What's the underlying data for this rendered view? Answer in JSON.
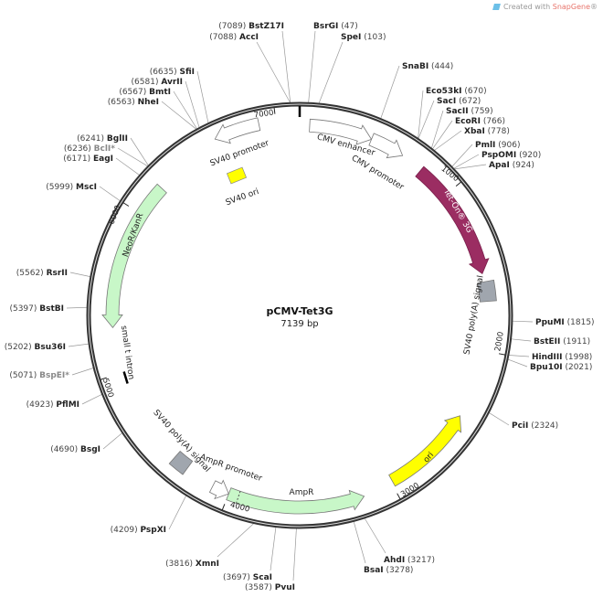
{
  "watermark": {
    "prefix": "Created with ",
    "brand": "SnapGene",
    "suffix": "®",
    "icon": "snapgene-logo-icon"
  },
  "plasmid": {
    "name": "pCMV-Tet3G",
    "size_label": "7139 bp",
    "length_bp": 7139
  },
  "ticks": [
    "1000",
    "2000",
    "3000",
    "4000",
    "5000",
    "6000",
    "7000"
  ],
  "colors": {
    "tet_on": "#9b2d62",
    "neo": "#c8f7c8",
    "amp": "#c8f7c8",
    "ori": "#ffff00",
    "polyA": "#a0a6ae",
    "outline": "#ffffff"
  },
  "features": [
    {
      "name": "CMV enhancer",
      "start": 60,
      "end": 440,
      "style": "outline",
      "direction": "cw"
    },
    {
      "name": "CMV promoter",
      "start": 440,
      "end": 650,
      "style": "outline",
      "direction": "cw"
    },
    {
      "name": "Tet-On® 3G",
      "start": 790,
      "end": 1530,
      "style": "tet_on",
      "direction": "cw"
    },
    {
      "name": "SV40 poly(A) signal",
      "start": 1580,
      "end": 1700,
      "style": "polyA",
      "direction": "none"
    },
    {
      "name": "ori",
      "start": 2420,
      "end": 2990,
      "style": "ori",
      "direction": "ccw"
    },
    {
      "name": "AmpR",
      "start": 3180,
      "end": 4000,
      "style": "amp",
      "direction": "ccw"
    },
    {
      "name": "AmpR promoter",
      "start": 4000,
      "end": 4105,
      "style": "outline",
      "direction": "ccw"
    },
    {
      "name": "SV40 poly(A) signal",
      "start": 4290,
      "end": 4390,
      "style": "polyA",
      "direction": "none"
    },
    {
      "name": "small t intron",
      "start": 4950,
      "end": 4985,
      "style": "intron",
      "direction": "none"
    },
    {
      "name": "NeoR/KanR",
      "start": 5280,
      "end": 6200,
      "style": "neo",
      "direction": "ccw"
    },
    {
      "name": "SV40 ori",
      "start": 6610,
      "end": 6700,
      "style": "ori",
      "direction": "none"
    },
    {
      "name": "SV40 promoter",
      "start": 6630,
      "end": 6900,
      "style": "outline",
      "direction": "ccw"
    }
  ],
  "sites": [
    {
      "name": "BstZ17I",
      "pos": 7089
    },
    {
      "name": "AccI",
      "pos": 7088
    },
    {
      "name": "BsrGI",
      "pos": 47
    },
    {
      "name": "SpeI",
      "pos": 103
    },
    {
      "name": "SnaBI",
      "pos": 444
    },
    {
      "name": "Eco53kI",
      "pos": 670
    },
    {
      "name": "SacI",
      "pos": 672
    },
    {
      "name": "SacII",
      "pos": 759
    },
    {
      "name": "EcoRI",
      "pos": 766
    },
    {
      "name": "XbaI",
      "pos": 778
    },
    {
      "name": "PmlI",
      "pos": 906
    },
    {
      "name": "PspOMI",
      "pos": 920
    },
    {
      "name": "ApaI",
      "pos": 924
    },
    {
      "name": "PpuMI",
      "pos": 1815
    },
    {
      "name": "BstEII",
      "pos": 1911
    },
    {
      "name": "HindIII",
      "pos": 1998
    },
    {
      "name": "Bpu10I",
      "pos": 2021
    },
    {
      "name": "PciI",
      "pos": 2324
    },
    {
      "name": "AhdI",
      "pos": 3217
    },
    {
      "name": "BsaI",
      "pos": 3278
    },
    {
      "name": "PvuI",
      "pos": 3587
    },
    {
      "name": "ScaI",
      "pos": 3697
    },
    {
      "name": "XmnI",
      "pos": 3816
    },
    {
      "name": "PspXI",
      "pos": 4209
    },
    {
      "name": "BsgI",
      "pos": 4690
    },
    {
      "name": "PflMI",
      "pos": 4923
    },
    {
      "name": "BspEI*",
      "pos": 5071,
      "gray": true
    },
    {
      "name": "Bsu36I",
      "pos": 5202
    },
    {
      "name": "BstBI",
      "pos": 5397
    },
    {
      "name": "RsrII",
      "pos": 5562
    },
    {
      "name": "MscI",
      "pos": 5999
    },
    {
      "name": "EagI",
      "pos": 6171
    },
    {
      "name": "BclI*",
      "pos": 6236,
      "gray": true
    },
    {
      "name": "BglII",
      "pos": 6241
    },
    {
      "name": "NheI",
      "pos": 6563
    },
    {
      "name": "BmtI",
      "pos": 6567
    },
    {
      "name": "AvrII",
      "pos": 6581
    },
    {
      "name": "SfiI",
      "pos": 6635
    }
  ]
}
